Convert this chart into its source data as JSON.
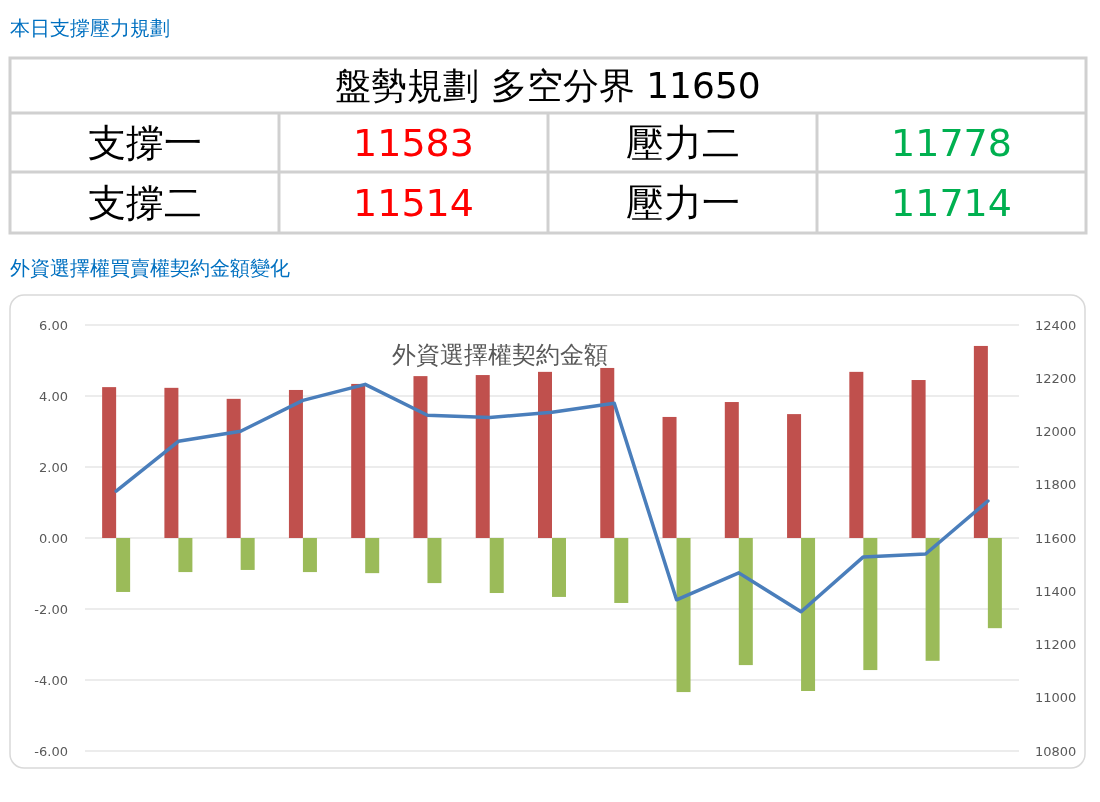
{
  "chart_data": [
    {
      "type": "other",
      "title": "本日支撐壓力規劃",
      "subtitle": "盤勢規劃 多空分界 11650",
      "categories": [
        "支撐一",
        "壓力二",
        "支撐二",
        "壓力一"
      ],
      "values": [
        11583,
        11778,
        11514,
        11714
      ],
      "colors": [
        "#ff0000",
        "#00b050",
        "#ff0000",
        "#00b050"
      ],
      "data_labels": true
    },
    {
      "type": "bar",
      "subtitle": "外資選擇權買賣權契約金額變化",
      "title": "外資選擇權契約金額",
      "categories": [
        null,
        null,
        null,
        null,
        null,
        null,
        null,
        null,
        null,
        null,
        null,
        null,
        null,
        null,
        null
      ],
      "series": [
        {
          "type": "bar",
          "color": "#c0504d",
          "values": [
            4.25,
            4.23,
            3.92,
            4.17,
            4.34,
            4.56,
            4.59,
            4.68,
            4.79,
            3.41,
            3.83,
            3.49,
            4.68,
            4.45,
            5.41
          ]
        },
        {
          "type": "bar",
          "color": "#9bbb59",
          "values": [
            -1.52,
            -0.96,
            -0.9,
            -0.96,
            -0.99,
            -1.27,
            -1.55,
            -1.66,
            -1.83,
            -4.34,
            -3.58,
            -4.31,
            -3.72,
            -3.46,
            -2.54
          ]
        },
        {
          "type": "line",
          "axis": "y2",
          "color": "#4a7ebb",
          "values": [
            11776,
            11963,
            12001,
            12117,
            12177,
            12061,
            12053,
            12072,
            12106,
            11368,
            11469,
            11323,
            11529,
            11540,
            11739
          ]
        }
      ],
      "ylim": [
        -6,
        6
      ],
      "yticks": [
        {
          "value": 6,
          "label": "6.00"
        },
        {
          "value": 4,
          "label": "4.00"
        },
        {
          "value": 2,
          "label": "2.00"
        },
        {
          "value": 0,
          "label": "0.00"
        },
        {
          "value": -2,
          "label": "-2.00"
        },
        {
          "value": -4,
          "label": "-4.00"
        },
        {
          "value": -6,
          "label": "-6.00"
        }
      ],
      "y2lim": [
        10800,
        12400
      ],
      "y2ticks": [
        10800,
        11000,
        11200,
        11400,
        11600,
        11800,
        12000,
        12200,
        12400
      ],
      "grid": "y"
    }
  ]
}
